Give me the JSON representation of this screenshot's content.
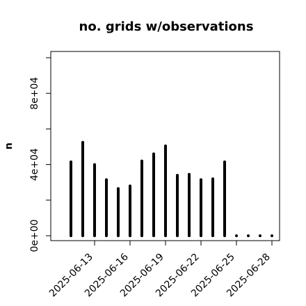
{
  "chart_data": {
    "type": "bar",
    "title": "no. grids w/observations",
    "xlabel": "",
    "ylabel": "n",
    "ylim": [
      0,
      100000
    ],
    "y_ticks": [
      0,
      20000,
      40000,
      60000,
      80000,
      100000
    ],
    "y_tick_labels": [
      "0e+00",
      "",
      "4e+04",
      "",
      "8e+04",
      ""
    ],
    "x_tick_labels": [
      {
        "text": "2025-06-13",
        "color": "#000000"
      },
      {
        "text": "2025-06-16",
        "color": "#000000"
      },
      {
        "text": "2025-06-19",
        "color": "#228B22"
      },
      {
        "text": "2025-06-22",
        "color": "#000000"
      },
      {
        "text": "2025-06-25",
        "color": "#000000"
      },
      {
        "text": "2025-06-28",
        "color": "#000000"
      }
    ],
    "categories": [
      "2025-06-11",
      "2025-06-12",
      "2025-06-13",
      "2025-06-14",
      "2025-06-15",
      "2025-06-16",
      "2025-06-17",
      "2025-06-18",
      "2025-06-19",
      "2025-06-20",
      "2025-06-21",
      "2025-06-22",
      "2025-06-23",
      "2025-06-24",
      "2025-06-25",
      "2025-06-26",
      "2025-06-27",
      "2025-06-28"
    ],
    "values": [
      41500,
      52500,
      40000,
      31500,
      26500,
      28000,
      42000,
      46000,
      50500,
      34000,
      34500,
      31500,
      32000,
      41500,
      0,
      0,
      0,
      0
    ],
    "grid": false,
    "bar_color": "#000000"
  }
}
